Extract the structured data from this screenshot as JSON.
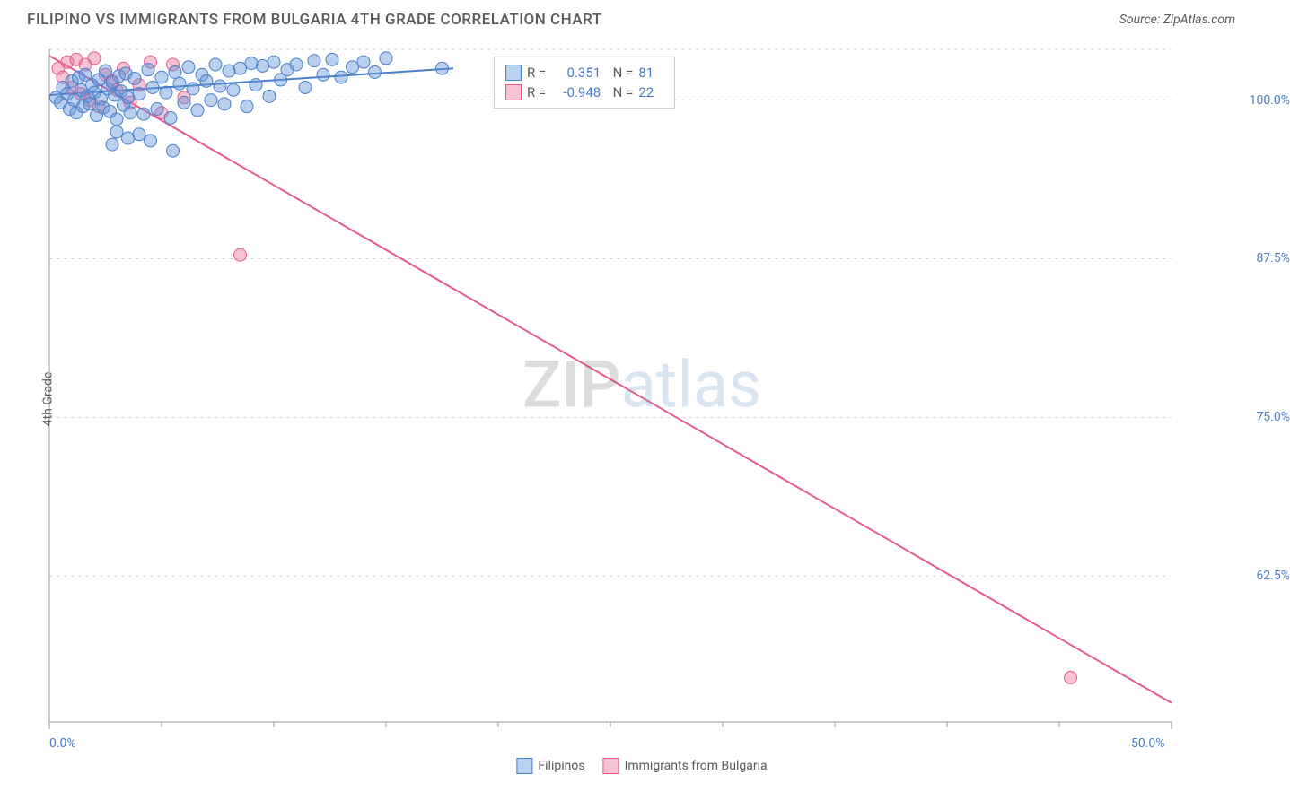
{
  "header": {
    "title": "FILIPINO VS IMMIGRANTS FROM BULGARIA 4TH GRADE CORRELATION CHART",
    "source": "Source: ZipAtlas.com"
  },
  "chart": {
    "type": "scatter",
    "y_axis_label": "4th Grade",
    "x_domain": [
      0,
      50
    ],
    "y_domain": [
      51,
      104
    ],
    "x_ticks": [
      {
        "value": 0.0,
        "label": "0.0%"
      },
      {
        "value": 50.0,
        "label": "50.0%"
      }
    ],
    "y_ticks": [
      {
        "value": 62.5,
        "label": "62.5%"
      },
      {
        "value": 75.0,
        "label": "75.0%"
      },
      {
        "value": 87.5,
        "label": "87.5%"
      },
      {
        "value": 100.0,
        "label": "100.0%"
      }
    ],
    "minor_x_ticks": [
      5,
      10,
      15,
      20,
      25,
      30,
      35,
      40,
      45
    ],
    "gridline_color": "#d8d8d8",
    "gridline_dash": "4,4",
    "axis_color": "#999999",
    "background_color": "#ffffff",
    "series": [
      {
        "id": "filipinos",
        "label": "Filipinos",
        "R": "0.351",
        "N": "81",
        "color_fill": "rgba(100,150,220,0.45)",
        "color_stroke": "#4a7ec9",
        "marker_radius": 7,
        "trend": {
          "x1": 0,
          "y1": 100.4,
          "x2": 18,
          "y2": 102.5,
          "stroke_width": 2
        },
        "points": [
          [
            0.3,
            100.2
          ],
          [
            0.5,
            99.8
          ],
          [
            0.6,
            101.0
          ],
          [
            0.8,
            100.5
          ],
          [
            0.9,
            99.3
          ],
          [
            1.0,
            101.5
          ],
          [
            1.1,
            100.0
          ],
          [
            1.2,
            99.0
          ],
          [
            1.3,
            101.8
          ],
          [
            1.4,
            100.8
          ],
          [
            1.5,
            99.5
          ],
          [
            1.6,
            102.0
          ],
          [
            1.7,
            100.3
          ],
          [
            1.8,
            99.7
          ],
          [
            1.9,
            101.2
          ],
          [
            2.0,
            100.6
          ],
          [
            2.1,
            98.8
          ],
          [
            2.2,
            101.6
          ],
          [
            2.3,
            100.1
          ],
          [
            2.4,
            99.4
          ],
          [
            2.5,
            102.3
          ],
          [
            2.6,
            100.9
          ],
          [
            2.7,
            99.1
          ],
          [
            2.8,
            101.4
          ],
          [
            2.9,
            100.4
          ],
          [
            3.0,
            98.5
          ],
          [
            3.1,
            101.9
          ],
          [
            3.2,
            100.7
          ],
          [
            3.3,
            99.6
          ],
          [
            3.4,
            102.1
          ],
          [
            3.5,
            100.2
          ],
          [
            3.6,
            99.0
          ],
          [
            3.8,
            101.7
          ],
          [
            4.0,
            100.5
          ],
          [
            4.2,
            98.9
          ],
          [
            4.4,
            102.4
          ],
          [
            4.6,
            101.0
          ],
          [
            4.8,
            99.3
          ],
          [
            5.0,
            101.8
          ],
          [
            5.2,
            100.6
          ],
          [
            5.4,
            98.6
          ],
          [
            5.6,
            102.2
          ],
          [
            5.8,
            101.3
          ],
          [
            6.0,
            99.8
          ],
          [
            6.2,
            102.6
          ],
          [
            6.4,
            100.9
          ],
          [
            6.6,
            99.2
          ],
          [
            6.8,
            102.0
          ],
          [
            7.0,
            101.5
          ],
          [
            7.2,
            100.0
          ],
          [
            7.4,
            102.8
          ],
          [
            7.6,
            101.1
          ],
          [
            7.8,
            99.7
          ],
          [
            8.0,
            102.3
          ],
          [
            8.2,
            100.8
          ],
          [
            8.5,
            102.5
          ],
          [
            8.8,
            99.5
          ],
          [
            9.0,
            102.9
          ],
          [
            9.2,
            101.2
          ],
          [
            9.5,
            102.7
          ],
          [
            9.8,
            100.3
          ],
          [
            10.0,
            103.0
          ],
          [
            10.3,
            101.6
          ],
          [
            10.6,
            102.4
          ],
          [
            11.0,
            102.8
          ],
          [
            11.4,
            101.0
          ],
          [
            11.8,
            103.1
          ],
          [
            12.2,
            102.0
          ],
          [
            12.6,
            103.2
          ],
          [
            13.0,
            101.8
          ],
          [
            13.5,
            102.6
          ],
          [
            14.0,
            103.0
          ],
          [
            14.5,
            102.2
          ],
          [
            15.0,
            103.3
          ],
          [
            3.5,
            97.0
          ],
          [
            4.0,
            97.3
          ],
          [
            4.5,
            96.8
          ],
          [
            3.0,
            97.5
          ],
          [
            2.8,
            96.5
          ],
          [
            5.5,
            96.0
          ],
          [
            17.5,
            102.5
          ]
        ]
      },
      {
        "id": "bulgaria",
        "label": "Immigrants from Bulgaria",
        "R": "-0.948",
        "N": "22",
        "color_fill": "rgba(235,120,160,0.45)",
        "color_stroke": "#e85a8f",
        "marker_radius": 7,
        "trend": {
          "x1": 0,
          "y1": 103.5,
          "x2": 50,
          "y2": 52.5,
          "stroke_width": 2
        },
        "points": [
          [
            0.4,
            102.5
          ],
          [
            0.6,
            101.8
          ],
          [
            0.8,
            103.0
          ],
          [
            1.0,
            101.0
          ],
          [
            1.2,
            103.2
          ],
          [
            1.4,
            100.5
          ],
          [
            1.6,
            102.8
          ],
          [
            1.8,
            100.0
          ],
          [
            2.0,
            103.3
          ],
          [
            2.2,
            99.5
          ],
          [
            2.5,
            102.0
          ],
          [
            2.8,
            101.5
          ],
          [
            3.0,
            100.8
          ],
          [
            3.3,
            102.5
          ],
          [
            3.6,
            99.8
          ],
          [
            4.0,
            101.2
          ],
          [
            4.5,
            103.0
          ],
          [
            5.0,
            99.0
          ],
          [
            5.5,
            102.8
          ],
          [
            6.0,
            100.2
          ],
          [
            8.5,
            87.8
          ],
          [
            45.5,
            54.5
          ]
        ]
      }
    ],
    "legend": {
      "items": [
        {
          "label": "Filipinos",
          "fill": "rgba(100,150,220,0.45)",
          "stroke": "#4a7ec9"
        },
        {
          "label": "Immigrants from Bulgaria",
          "fill": "rgba(235,120,160,0.45)",
          "stroke": "#e85a8f"
        }
      ]
    },
    "watermark": {
      "zip": "ZIP",
      "atlas": "atlas"
    }
  }
}
